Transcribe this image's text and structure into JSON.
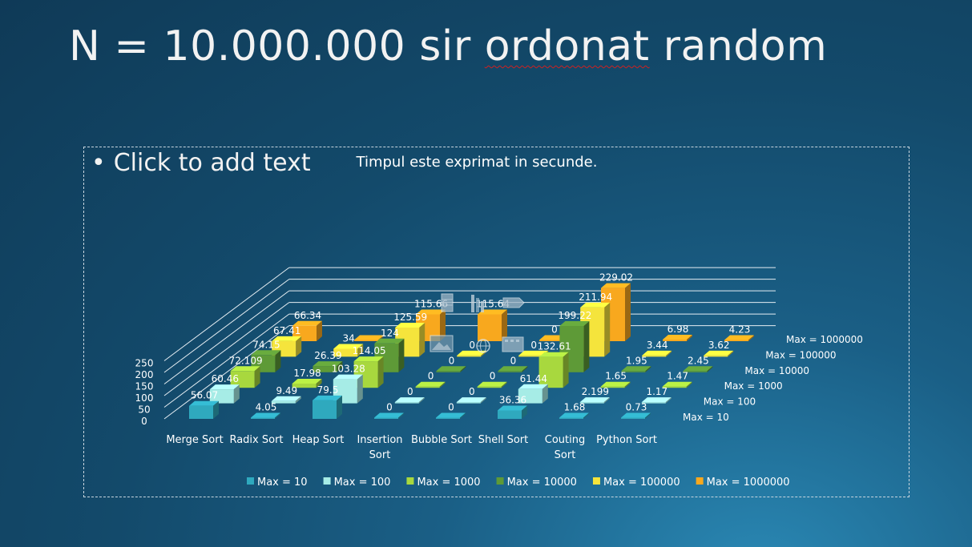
{
  "slide": {
    "title_prefix": "N = 10.000.000 sir ",
    "title_flagged_word": "ordonat",
    "title_suffix": " random",
    "placeholder_bullet": "•",
    "placeholder_text": "Click to add text"
  },
  "placeholder_icons": [
    "table-icon",
    "chart-icon",
    "smartart-icon",
    "picture-icon",
    "online-picture-icon",
    "video-icon"
  ],
  "colors": {
    "background": "#134a6b",
    "Max = 10": "#2fa9be",
    "Max = 100": "#a6ece6",
    "Max = 1000": "#a8d83e",
    "Max = 10000": "#5e9a37",
    "Max = 100000": "#f5e43c",
    "Max = 1000000": "#f8a81e"
  },
  "chart_data": {
    "type": "bar",
    "subtype": "3d-column",
    "title": "Timpul este exprimat in secunde.",
    "categories": [
      "Merge Sort",
      "Radix Sort",
      "Heap Sort",
      "Insertion Sort",
      "Bubble Sort",
      "Shell Sort",
      "Couting Sort",
      "Python Sort"
    ],
    "series": [
      {
        "name": "Max = 10",
        "values": [
          56.07,
          4.05,
          79.5,
          0,
          0,
          36.36,
          1.68,
          0.73
        ],
        "labels": [
          "56.07",
          "4.05",
          "79.5",
          "0",
          "0",
          "36.36",
          "1.68",
          "0.73"
        ]
      },
      {
        "name": "Max = 100",
        "values": [
          60.46,
          9.49,
          103.28,
          0,
          0,
          61.44,
          2.199,
          1.17
        ],
        "labels": [
          "60.46",
          "9.49",
          "103.28",
          "0",
          "0",
          "61.44",
          "2.199",
          "1.17"
        ]
      },
      {
        "name": "Max = 1000",
        "values": [
          72.109,
          17.98,
          114.05,
          0,
          0,
          132.61,
          1.65,
          1.47
        ],
        "labels": [
          "72.109",
          "17.98",
          "114.05",
          "0",
          "0",
          "132.61",
          "1.65",
          "1.47"
        ]
      },
      {
        "name": "Max = 10000",
        "values": [
          74.15,
          26.39,
          124,
          0,
          0,
          199.22,
          1.95,
          2.45
        ],
        "labels": [
          "74.15",
          "26.39",
          "124",
          "0",
          "0",
          "199.22",
          "1.95",
          "2.45"
        ]
      },
      {
        "name": "Max = 100000",
        "values": [
          67.41,
          34,
          125.59,
          0,
          0,
          211.94,
          3.44,
          3.62
        ],
        "labels": [
          "67.41",
          "34",
          "125.59",
          "0",
          "0",
          "211.94",
          "3.44",
          "3.62"
        ]
      },
      {
        "name": "Max = 1000000",
        "values": [
          66.34,
          0,
          115.66,
          115.64,
          0,
          229.02,
          6.98,
          4.23
        ],
        "labels": [
          "66.34",
          "",
          "115.66",
          "115.64",
          "0",
          "229.02",
          "6.98",
          "4.23"
        ]
      }
    ],
    "yticks": [
      "0",
      "50",
      "100",
      "150",
      "200",
      "250"
    ],
    "ylim": [
      0,
      250
    ],
    "grid": true,
    "legend_position": "bottom"
  }
}
